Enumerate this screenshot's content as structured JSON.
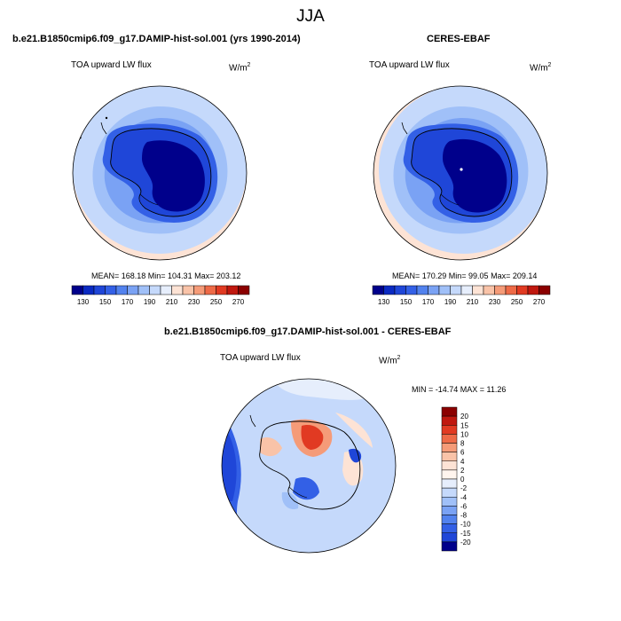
{
  "figure": {
    "season": "JJA"
  },
  "panels": [
    {
      "title": "b.e21.B1850cmip6.f09_g17.DAMIP-hist-sol.001 (yrs 1990-2014)",
      "variable": "TOA upward LW flux",
      "units": "W/m",
      "units_exp": "2",
      "stats": "MEAN= 168.18  Min= 104.31  Max= 203.12"
    },
    {
      "title": "CERES-EBAF",
      "variable": "TOA upward LW flux",
      "units": "W/m",
      "units_exp": "2",
      "stats": "MEAN= 170.29  Min=  99.05  Max= 209.14"
    },
    {
      "title": "b.e21.B1850cmip6.f09_g17.DAMIP-hist-sol.001 - CERES-EBAF",
      "variable": "TOA upward LW flux",
      "units": "W/m",
      "units_exp": "2",
      "stats": "MIN = -14.74 MAX =  11.26"
    }
  ],
  "chart_data": [
    {
      "type": "heatmap",
      "projection": "polar-stereographic-south",
      "title": "b.e21.B1850cmip6.f09_g17.DAMIP-hist-sol.001 (yrs 1990-2014)",
      "variable": "TOA upward LW flux",
      "units": "W/m2",
      "mean": 168.18,
      "min": 104.31,
      "max": 203.12,
      "levels": [
        130,
        140,
        150,
        160,
        170,
        180,
        190,
        200,
        210,
        220,
        230,
        240,
        250,
        260,
        270
      ],
      "colorbar_labels": [
        "130",
        "150",
        "170",
        "190",
        "210",
        "230",
        "250",
        "270"
      ],
      "colors": [
        "#00008b",
        "#0a2ac2",
        "#1f46d8",
        "#3360e6",
        "#5282ee",
        "#7aa2f4",
        "#a0c0f8",
        "#c5d9fb",
        "#e6eefc",
        "#fde3d5",
        "#f9c3a8",
        "#f59b78",
        "#ee6a47",
        "#e13a22",
        "#c0180f",
        "#8b0000"
      ],
      "legend_position": "bottom"
    },
    {
      "type": "heatmap",
      "projection": "polar-stereographic-south",
      "title": "CERES-EBAF",
      "variable": "TOA upward LW flux",
      "units": "W/m2",
      "mean": 170.29,
      "min": 99.05,
      "max": 209.14,
      "levels": [
        130,
        140,
        150,
        160,
        170,
        180,
        190,
        200,
        210,
        220,
        230,
        240,
        250,
        260,
        270
      ],
      "colorbar_labels": [
        "130",
        "150",
        "170",
        "190",
        "210",
        "230",
        "250",
        "270"
      ],
      "colors": [
        "#00008b",
        "#0a2ac2",
        "#1f46d8",
        "#3360e6",
        "#5282ee",
        "#7aa2f4",
        "#a0c0f8",
        "#c5d9fb",
        "#e6eefc",
        "#fde3d5",
        "#f9c3a8",
        "#f59b78",
        "#ee6a47",
        "#e13a22",
        "#c0180f",
        "#8b0000"
      ],
      "legend_position": "bottom"
    },
    {
      "type": "heatmap",
      "projection": "polar-stereographic-south",
      "title": "b.e21.B1850cmip6.f09_g17.DAMIP-hist-sol.001 - CERES-EBAF",
      "variable": "TOA upward LW flux",
      "units": "W/m2",
      "min": -14.74,
      "max": 11.26,
      "levels": [
        -20,
        -15,
        -10,
        -8,
        -6,
        -4,
        -2,
        0,
        2,
        4,
        6,
        8,
        10,
        15,
        20
      ],
      "colorbar_labels": [
        "20",
        "15",
        "10",
        "8",
        "6",
        "4",
        "2",
        "0",
        "-2",
        "-4",
        "-6",
        "-8",
        "-10",
        "-15",
        "-20"
      ],
      "colors": [
        "#8b0000",
        "#c0180f",
        "#e13a22",
        "#ee6a47",
        "#f59b78",
        "#f9c3a8",
        "#fde3d5",
        "#fff5ee",
        "#e6eefc",
        "#c5d9fb",
        "#a0c0f8",
        "#7aa2f4",
        "#5282ee",
        "#3360e6",
        "#1f46d8",
        "#00008b"
      ],
      "legend_position": "right"
    }
  ]
}
